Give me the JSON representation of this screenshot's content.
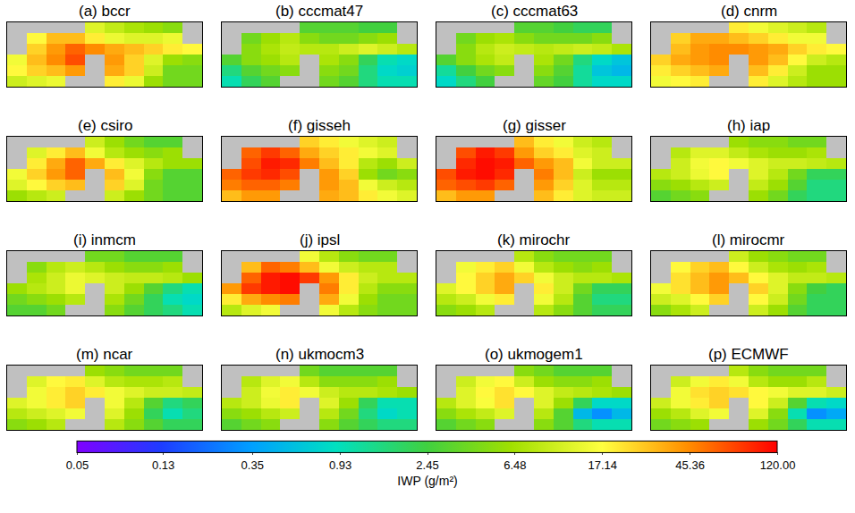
{
  "chart_data": {
    "type": "heatmap",
    "log": true,
    "tick_labels": false,
    "xlim": [
      30,
      280
    ],
    "ylim": [
      -30,
      30
    ],
    "x": [
      42.5,
      67.5,
      92.5,
      117.5,
      142.5,
      167.5,
      192.5,
      217.5,
      242.5,
      267.5
    ],
    "y": [
      25,
      15,
      5,
      -5,
      -15,
      -25
    ],
    "colorbar": {
      "title": "IWP (g/m²)",
      "range": [
        0.05,
        120
      ],
      "ticks": [
        0.05,
        0.13,
        0.35,
        0.93,
        2.45,
        6.48,
        17.14,
        45.36,
        {
          "value": 120,
          "label": "120.00"
        }
      ]
    },
    "panels": [
      {
        "title": "(a) bccr",
        "values": [
          [
            null,
            null,
            null,
            null,
            12,
            9,
            7,
            6,
            5,
            null
          ],
          [
            null,
            18,
            30,
            30,
            20,
            14,
            12,
            12,
            14,
            null
          ],
          [
            null,
            25,
            40,
            60,
            45,
            35,
            30,
            25,
            20,
            18
          ],
          [
            15,
            30,
            45,
            70,
            null,
            40,
            25,
            12,
            6,
            5
          ],
          [
            18,
            25,
            30,
            40,
            null,
            35,
            25,
            10,
            4,
            4
          ],
          [
            10,
            12,
            14,
            null,
            null,
            20,
            14,
            6,
            4,
            4
          ]
        ]
      },
      {
        "title": "(b) cccmat47",
        "values": [
          [
            null,
            null,
            null,
            null,
            3,
            3,
            3,
            2.5,
            2.5,
            null
          ],
          [
            null,
            4,
            6,
            8,
            5,
            4,
            4,
            5,
            6,
            null
          ],
          [
            null,
            5,
            7,
            9,
            8,
            8,
            10,
            12,
            10,
            8
          ],
          [
            3,
            5,
            6,
            8,
            null,
            7,
            5,
            2,
            1,
            0.8
          ],
          [
            1.5,
            3,
            4,
            5,
            null,
            5,
            4,
            1.5,
            0.8,
            0.7
          ],
          [
            1,
            2,
            3,
            null,
            null,
            4,
            3,
            1.5,
            1,
            1
          ]
        ]
      },
      {
        "title": "(c) cccmat63",
        "values": [
          [
            null,
            null,
            null,
            null,
            3,
            3,
            2.5,
            2,
            2,
            null
          ],
          [
            null,
            4,
            6,
            7,
            5,
            4,
            4,
            4,
            5,
            null
          ],
          [
            null,
            5,
            8,
            10,
            9,
            8,
            9,
            10,
            9,
            7
          ],
          [
            3,
            5,
            7,
            9,
            null,
            7,
            4,
            1.5,
            0.8,
            0.6
          ],
          [
            1.2,
            2.5,
            4,
            5,
            null,
            5,
            3,
            1.2,
            0.6,
            0.5
          ],
          [
            0.8,
            1.5,
            2.5,
            null,
            null,
            3.5,
            2.5,
            1.2,
            0.8,
            0.8
          ]
        ]
      },
      {
        "title": "(d) cnrm",
        "values": [
          [
            null,
            null,
            null,
            null,
            20,
            15,
            12,
            10,
            8,
            null
          ],
          [
            null,
            25,
            35,
            35,
            30,
            25,
            20,
            15,
            15,
            null
          ],
          [
            null,
            30,
            40,
            45,
            45,
            40,
            35,
            25,
            20,
            18
          ],
          [
            25,
            35,
            40,
            45,
            null,
            40,
            30,
            18,
            10,
            8
          ],
          [
            20,
            25,
            30,
            35,
            null,
            30,
            20,
            10,
            6,
            6
          ],
          [
            15,
            18,
            20,
            null,
            null,
            20,
            12,
            8,
            6,
            6
          ]
        ]
      },
      {
        "title": "(e) csiro",
        "values": [
          [
            null,
            null,
            null,
            null,
            10,
            6,
            4,
            3,
            3,
            null
          ],
          [
            null,
            12,
            20,
            30,
            15,
            8,
            6,
            5,
            6,
            null
          ],
          [
            null,
            20,
            35,
            60,
            35,
            20,
            12,
            8,
            6,
            6
          ],
          [
            15,
            25,
            40,
            60,
            null,
            30,
            15,
            5,
            3,
            3
          ],
          [
            12,
            18,
            25,
            30,
            null,
            25,
            12,
            4,
            3,
            3
          ],
          [
            6,
            8,
            10,
            null,
            null,
            10,
            6,
            4,
            3,
            3
          ]
        ]
      },
      {
        "title": "(f) gisseh",
        "values": [
          [
            null,
            null,
            null,
            null,
            25,
            20,
            15,
            12,
            10,
            null
          ],
          [
            null,
            60,
            80,
            60,
            35,
            25,
            20,
            15,
            12,
            null
          ],
          [
            null,
            70,
            100,
            90,
            50,
            30,
            20,
            8,
            6,
            10
          ],
          [
            60,
            80,
            90,
            70,
            null,
            40,
            25,
            6,
            4,
            5
          ],
          [
            50,
            60,
            60,
            50,
            null,
            40,
            30,
            15,
            10,
            8
          ],
          [
            30,
            40,
            40,
            null,
            null,
            35,
            30,
            20,
            15,
            12
          ]
        ]
      },
      {
        "title": "(g) gisser",
        "values": [
          [
            null,
            null,
            null,
            null,
            30,
            20,
            15,
            10,
            8,
            null
          ],
          [
            null,
            70,
            100,
            80,
            40,
            25,
            20,
            12,
            10,
            null
          ],
          [
            null,
            90,
            110,
            100,
            60,
            40,
            30,
            15,
            10,
            10
          ],
          [
            70,
            100,
            110,
            90,
            null,
            50,
            30,
            10,
            6,
            6
          ],
          [
            60,
            70,
            80,
            60,
            null,
            40,
            25,
            12,
            8,
            8
          ],
          [
            30,
            40,
            40,
            null,
            null,
            30,
            20,
            12,
            10,
            10
          ]
        ]
      },
      {
        "title": "(h) iap",
        "values": [
          [
            null,
            null,
            null,
            null,
            6,
            5,
            5,
            4,
            4,
            null
          ],
          [
            null,
            8,
            12,
            12,
            9,
            7,
            6,
            6,
            7,
            null
          ],
          [
            null,
            10,
            15,
            18,
            15,
            12,
            10,
            10,
            9,
            8
          ],
          [
            8,
            10,
            14,
            18,
            null,
            12,
            8,
            4,
            2,
            2
          ],
          [
            5,
            6,
            8,
            10,
            null,
            9,
            6,
            3,
            1.5,
            1.5
          ],
          [
            3,
            4,
            5,
            null,
            null,
            6,
            4,
            2,
            1.5,
            1.5
          ]
        ]
      },
      {
        "title": "(i) inmcm",
        "values": [
          [
            null,
            null,
            null,
            null,
            4,
            4,
            3,
            3,
            3,
            null
          ],
          [
            null,
            5,
            8,
            10,
            8,
            6,
            5,
            5,
            6,
            null
          ],
          [
            null,
            7,
            10,
            14,
            12,
            10,
            9,
            9,
            8,
            6
          ],
          [
            6,
            8,
            10,
            14,
            null,
            10,
            6,
            3,
            1.5,
            1
          ],
          [
            4,
            5,
            6,
            8,
            null,
            7,
            4,
            2,
            1,
            0.8
          ],
          [
            3,
            3,
            4,
            null,
            null,
            5,
            3,
            2,
            1.5,
            1
          ]
        ]
      },
      {
        "title": "(j) ipsl",
        "values": [
          [
            null,
            null,
            null,
            null,
            15,
            8,
            5,
            4,
            4,
            null
          ],
          [
            null,
            30,
            60,
            50,
            30,
            15,
            10,
            8,
            8,
            null
          ],
          [
            null,
            60,
            100,
            110,
            80,
            40,
            20,
            10,
            8,
            8
          ],
          [
            40,
            80,
            100,
            110,
            null,
            50,
            20,
            8,
            5,
            5
          ],
          [
            20,
            35,
            45,
            50,
            null,
            35,
            15,
            6,
            4,
            4
          ],
          [
            8,
            12,
            15,
            null,
            null,
            15,
            8,
            5,
            4,
            4
          ]
        ]
      },
      {
        "title": "(k) mirochr",
        "values": [
          [
            null,
            null,
            null,
            null,
            8,
            5,
            4,
            4,
            4,
            null
          ],
          [
            null,
            15,
            20,
            25,
            15,
            8,
            6,
            5,
            6,
            null
          ],
          [
            null,
            18,
            25,
            35,
            25,
            15,
            10,
            8,
            8,
            7
          ],
          [
            12,
            18,
            25,
            35,
            null,
            20,
            10,
            4,
            2,
            2
          ],
          [
            8,
            10,
            15,
            20,
            null,
            15,
            8,
            3,
            1.5,
            1.5
          ],
          [
            5,
            6,
            8,
            null,
            null,
            8,
            5,
            3,
            2,
            2
          ]
        ]
      },
      {
        "title": "(l) mirocmr",
        "values": [
          [
            null,
            null,
            null,
            null,
            10,
            6,
            5,
            4,
            4,
            null
          ],
          [
            null,
            18,
            25,
            30,
            18,
            10,
            7,
            6,
            7,
            null
          ],
          [
            null,
            22,
            30,
            40,
            30,
            18,
            12,
            9,
            9,
            8
          ],
          [
            15,
            22,
            30,
            40,
            null,
            25,
            12,
            5,
            2.5,
            2
          ],
          [
            10,
            12,
            18,
            25,
            null,
            18,
            10,
            4,
            2,
            2
          ],
          [
            5,
            7,
            10,
            null,
            null,
            10,
            6,
            3,
            2,
            2
          ]
        ]
      },
      {
        "title": "(m) ncar",
        "values": [
          [
            null,
            null,
            null,
            null,
            6,
            5,
            4,
            4,
            4,
            null
          ],
          [
            null,
            12,
            18,
            20,
            12,
            8,
            7,
            7,
            8,
            null
          ],
          [
            null,
            15,
            20,
            25,
            20,
            15,
            12,
            10,
            10,
            9
          ],
          [
            12,
            15,
            20,
            25,
            null,
            15,
            8,
            3,
            1.5,
            2
          ],
          [
            8,
            10,
            12,
            15,
            null,
            12,
            6,
            2,
            1,
            1.5
          ],
          [
            5,
            6,
            8,
            null,
            null,
            8,
            5,
            3,
            2,
            2
          ]
        ]
      },
      {
        "title": "(n) ukmocm3",
        "values": [
          [
            null,
            null,
            null,
            null,
            4,
            3,
            3,
            3,
            3,
            null
          ],
          [
            null,
            8,
            12,
            15,
            8,
            5,
            5,
            5,
            6,
            null
          ],
          [
            null,
            10,
            15,
            20,
            15,
            10,
            8,
            8,
            7,
            6
          ],
          [
            8,
            10,
            14,
            20,
            null,
            12,
            6,
            2,
            1,
            1
          ],
          [
            5,
            6,
            8,
            10,
            null,
            8,
            4,
            1.5,
            0.8,
            1
          ],
          [
            3,
            4,
            5,
            null,
            null,
            5,
            3,
            2,
            1.5,
            1.5
          ]
        ]
      },
      {
        "title": "(o) ukmogem1",
        "values": [
          [
            null,
            null,
            null,
            null,
            5,
            4,
            3,
            3,
            3,
            null
          ],
          [
            null,
            10,
            15,
            18,
            10,
            6,
            5,
            5,
            6,
            null
          ],
          [
            null,
            12,
            18,
            22,
            18,
            12,
            9,
            8,
            7,
            6
          ],
          [
            8,
            12,
            16,
            22,
            null,
            12,
            6,
            2,
            0.8,
            0.8
          ],
          [
            5,
            7,
            9,
            12,
            null,
            8,
            3,
            0.5,
            0.3,
            0.5
          ],
          [
            3,
            4,
            5,
            null,
            null,
            5,
            3,
            1.5,
            1,
            1
          ]
        ]
      },
      {
        "title": "(p) ECMWF",
        "values": [
          [
            null,
            null,
            null,
            null,
            8,
            5,
            4,
            4,
            4,
            null
          ],
          [
            null,
            10,
            15,
            20,
            15,
            8,
            6,
            6,
            8,
            null
          ],
          [
            null,
            15,
            22,
            25,
            22,
            18,
            15,
            12,
            12,
            10
          ],
          [
            10,
            15,
            20,
            25,
            null,
            18,
            10,
            3,
            1,
            0.8
          ],
          [
            6,
            8,
            12,
            15,
            null,
            12,
            5,
            1,
            0.3,
            0.4
          ],
          [
            4,
            5,
            6,
            null,
            null,
            6,
            4,
            2,
            1,
            1
          ]
        ]
      }
    ]
  }
}
